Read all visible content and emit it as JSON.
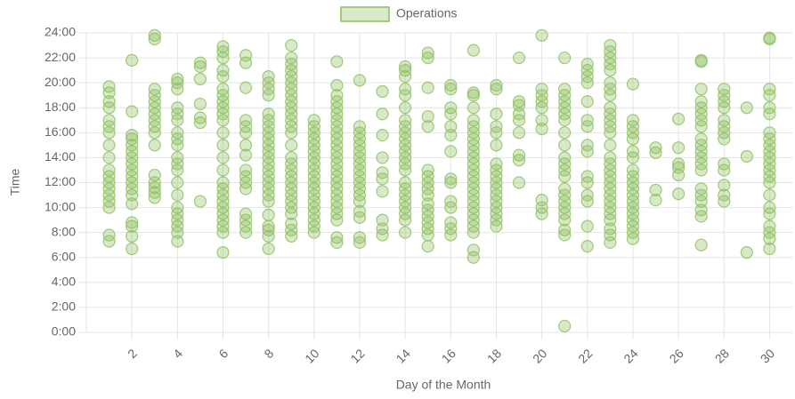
{
  "chart_data": {
    "type": "scatter",
    "xlabel": "Day of the Month",
    "ylabel": "Time",
    "xlim": [
      0,
      31
    ],
    "ylim": [
      0,
      24
    ],
    "xticks": [
      2,
      4,
      6,
      8,
      10,
      12,
      14,
      16,
      18,
      20,
      22,
      24,
      26,
      28,
      30
    ],
    "yticks": [
      {
        "value": 0,
        "label": "0:00"
      },
      {
        "value": 2,
        "label": "2:00"
      },
      {
        "value": 4,
        "label": "4:00"
      },
      {
        "value": 6,
        "label": "6:00"
      },
      {
        "value": 8,
        "label": "8:00"
      },
      {
        "value": 10,
        "label": "10:00"
      },
      {
        "value": 12,
        "label": "12:00"
      },
      {
        "value": 14,
        "label": "14:00"
      },
      {
        "value": 16,
        "label": "16:00"
      },
      {
        "value": 18,
        "label": "18:00"
      },
      {
        "value": 20,
        "label": "20:00"
      },
      {
        "value": 22,
        "label": "22:00"
      },
      {
        "value": 24,
        "label": "24:00"
      }
    ],
    "grid": true,
    "legend": "top",
    "series": [
      {
        "name": "Operations",
        "color": "#8cbf5f",
        "x": [
          1,
          1,
          1,
          1,
          1,
          1,
          1,
          1,
          1,
          1,
          1,
          1,
          1,
          1,
          1,
          1,
          1,
          1,
          2,
          2,
          2,
          2,
          2,
          2,
          2,
          2,
          2,
          2,
          2,
          2,
          2,
          2,
          2,
          2,
          2,
          2,
          3,
          3,
          3,
          3,
          3,
          3,
          3,
          3,
          3,
          3,
          3,
          3,
          3,
          3,
          3,
          3,
          4,
          4,
          4,
          4,
          4,
          4,
          4,
          4,
          4,
          4,
          4,
          4,
          4,
          4,
          4,
          4,
          4,
          4,
          4,
          4,
          5,
          5,
          5,
          5,
          5,
          5,
          5,
          6,
          6,
          6,
          6,
          6,
          6,
          6,
          6,
          6,
          6,
          6,
          6,
          6,
          6,
          6,
          6,
          6,
          6,
          6,
          6,
          6,
          6,
          6,
          6,
          6,
          7,
          7,
          7,
          7,
          7,
          7,
          7,
          7,
          7,
          7,
          7,
          7,
          7,
          7,
          7,
          7,
          8,
          8,
          8,
          8,
          8,
          8,
          8,
          8,
          8,
          8,
          8,
          8,
          8,
          8,
          8,
          8,
          8,
          8,
          8,
          8,
          8,
          8,
          8,
          8,
          9,
          9,
          9,
          9,
          9,
          9,
          9,
          9,
          9,
          9,
          9,
          9,
          9,
          9,
          9,
          9,
          9,
          9,
          9,
          9,
          9,
          9,
          9,
          9,
          9,
          9,
          9,
          9,
          10,
          10,
          10,
          10,
          10,
          10,
          10,
          10,
          10,
          10,
          10,
          10,
          10,
          10,
          10,
          10,
          10,
          10,
          10,
          11,
          11,
          11,
          11,
          11,
          11,
          11,
          11,
          11,
          11,
          11,
          11,
          11,
          11,
          11,
          11,
          11,
          11,
          11,
          11,
          11,
          11,
          11,
          11,
          11,
          12,
          12,
          12,
          12,
          12,
          12,
          12,
          12,
          12,
          12,
          12,
          12,
          12,
          12,
          12,
          12,
          12,
          12,
          13,
          13,
          13,
          13,
          13,
          13,
          13,
          13,
          13,
          13,
          14,
          14,
          14,
          14,
          14,
          14,
          14,
          14,
          14,
          14,
          14,
          14,
          14,
          14,
          14,
          14,
          14,
          14,
          14,
          14,
          14,
          14,
          14,
          15,
          15,
          15,
          15,
          15,
          15,
          15,
          15,
          15,
          15,
          15,
          15,
          15,
          15,
          15,
          15,
          15,
          16,
          16,
          16,
          16,
          16,
          16,
          16,
          16,
          16,
          16,
          16,
          16,
          16,
          16,
          17,
          17,
          17,
          17,
          17,
          17,
          17,
          17,
          17,
          17,
          17,
          17,
          17,
          17,
          17,
          17,
          17,
          17,
          17,
          17,
          17,
          17,
          17,
          17,
          17,
          18,
          18,
          18,
          18,
          18,
          18,
          18,
          18,
          18,
          18,
          18,
          18,
          18,
          18,
          18,
          18,
          18,
          19,
          19,
          19,
          19,
          19,
          19,
          19,
          19,
          19,
          20,
          20,
          20,
          20,
          20,
          20,
          20,
          20,
          20,
          20,
          21,
          21,
          21,
          21,
          21,
          21,
          21,
          21,
          21,
          21,
          21,
          21,
          21,
          21,
          21,
          21,
          21,
          21,
          21,
          21,
          21,
          21,
          22,
          22,
          22,
          22,
          22,
          22,
          22,
          22,
          22,
          22,
          22,
          22,
          22,
          22,
          22,
          23,
          23,
          23,
          23,
          23,
          23,
          23,
          23,
          23,
          23,
          23,
          23,
          23,
          23,
          23,
          23,
          23,
          23,
          23,
          23,
          23,
          23,
          23,
          23,
          23,
          23,
          23,
          23,
          24,
          24,
          24,
          24,
          24,
          24,
          24,
          24,
          24,
          24,
          24,
          24,
          24,
          24,
          24,
          24,
          24,
          24,
          24,
          25,
          25,
          25,
          25,
          26,
          26,
          26,
          26,
          26,
          26,
          27,
          27,
          27,
          27,
          27,
          27,
          27,
          27,
          27,
          27,
          27,
          27,
          27,
          27,
          27,
          27,
          27,
          27,
          27,
          27,
          28,
          28,
          28,
          28,
          28,
          28,
          28,
          28,
          28,
          28,
          28,
          28,
          28,
          29,
          29,
          29,
          30,
          30,
          30,
          30,
          30,
          30,
          30,
          30,
          30,
          30,
          30,
          30,
          30,
          30,
          30,
          30,
          30,
          30,
          30,
          30,
          30,
          30
        ],
        "values": [
          7.3,
          7.8,
          10,
          10.5,
          11,
          11.5,
          12,
          12.5,
          13,
          14,
          15,
          16,
          16.5,
          17,
          18,
          18.5,
          19.2,
          19.7,
          6.7,
          7.7,
          8.5,
          8.8,
          10.3,
          11,
          11.5,
          12,
          12.5,
          13,
          13.5,
          14,
          14.5,
          15,
          15.5,
          15.8,
          17.7,
          21.8,
          10.8,
          11.2,
          11.6,
          12,
          12.6,
          15,
          16,
          16.5,
          17,
          17.5,
          18,
          18.5,
          19,
          19.5,
          23.5,
          23.8,
          7.3,
          8,
          8.5,
          9,
          9.5,
          10,
          11,
          12,
          13,
          13.5,
          14,
          15,
          15.5,
          16,
          17,
          17.5,
          18,
          19.5,
          20,
          20.3,
          10.5,
          16.8,
          17.2,
          18.3,
          20.3,
          21.3,
          21.6,
          6.4,
          8,
          8.5,
          9,
          9.5,
          10,
          10.5,
          11,
          11.5,
          12,
          13,
          14,
          15,
          16,
          17,
          17.5,
          18,
          18.5,
          19,
          19.5,
          20.5,
          21,
          22,
          22.5,
          22.9,
          8,
          8.5,
          9,
          9.5,
          11.5,
          12,
          12.5,
          13,
          14.2,
          15,
          16,
          16.5,
          17,
          19.6,
          21.6,
          22.2,
          6.7,
          7.7,
          8.2,
          8.5,
          9.4,
          10.5,
          11,
          11.5,
          12,
          12.5,
          13,
          13.5,
          14,
          14.5,
          15,
          15.5,
          16,
          16.5,
          17,
          17.5,
          19,
          19.5,
          20,
          20.5,
          7.7,
          8.2,
          8.7,
          9.5,
          10,
          10.5,
          11,
          11.5,
          12,
          12.5,
          13,
          13.5,
          14,
          15,
          16,
          16.5,
          17,
          17.5,
          18,
          18.5,
          19,
          19.5,
          20,
          20.5,
          21,
          21.5,
          22,
          23,
          8,
          8.5,
          9,
          9.5,
          10,
          10.5,
          11,
          11.5,
          12,
          12.5,
          13,
          13.5,
          14,
          14.5,
          15,
          15.5,
          16,
          16.5,
          17,
          7.2,
          7.6,
          9,
          9.5,
          10,
          10.5,
          11,
          11.5,
          12,
          12.5,
          13,
          13.5,
          14,
          14.5,
          15,
          15.5,
          16,
          16.5,
          17,
          17.5,
          18,
          18.5,
          19,
          19.8,
          21.7,
          7.2,
          7.6,
          9.2,
          9.7,
          10.5,
          11,
          11.5,
          12,
          12.5,
          13,
          13.5,
          14,
          14.5,
          15,
          15.5,
          16,
          16.5,
          20.2,
          7.8,
          8.3,
          9,
          11.3,
          12.3,
          12.8,
          14,
          15.8,
          17.5,
          19.3,
          8,
          9,
          9.5,
          10,
          10.5,
          11,
          11.5,
          12,
          13,
          13.5,
          14,
          14.5,
          15,
          15.5,
          16,
          16.5,
          17,
          18,
          19,
          19.5,
          20.5,
          21,
          21.3,
          6.9,
          7.8,
          8.3,
          8.8,
          9.3,
          9.8,
          10.3,
          11,
          11.5,
          12,
          12.5,
          13,
          16.5,
          17.3,
          19.6,
          22,
          22.4,
          7.8,
          8.3,
          8.8,
          10,
          10.5,
          12,
          12.3,
          14.5,
          15.8,
          16.5,
          17.5,
          18,
          19.5,
          19.8,
          6,
          6.6,
          8,
          8.5,
          9,
          9.5,
          10,
          10.5,
          11,
          11.5,
          12,
          12.5,
          13,
          13.5,
          14,
          14.5,
          15,
          15.5,
          16,
          16.5,
          17,
          18,
          19,
          19.2,
          22.6,
          8.5,
          9,
          9.5,
          10,
          10.5,
          11,
          11.5,
          12,
          12.5,
          13,
          13.5,
          15,
          16,
          16.5,
          17.5,
          19.5,
          19.8,
          12,
          13.8,
          14.2,
          16,
          17,
          17.5,
          18.2,
          18.5,
          22,
          9.5,
          10,
          10.6,
          16.3,
          17,
          18,
          18.5,
          19,
          19.5,
          23.8,
          0.5,
          7.8,
          8.2,
          9,
          9.5,
          10,
          10.5,
          11,
          11.5,
          12.5,
          13,
          13.5,
          14,
          15,
          16,
          17,
          17.5,
          18,
          18.5,
          19,
          19.5,
          22,
          6.9,
          8.5,
          10.5,
          11,
          12,
          12.5,
          14.5,
          15,
          16.5,
          17,
          18.5,
          20,
          20.5,
          21,
          21.5,
          7.2,
          7.8,
          8.3,
          9,
          9.5,
          10,
          10.5,
          11,
          11.5,
          12,
          12.5,
          13,
          13.5,
          14,
          15,
          16,
          16.5,
          17,
          17.5,
          18,
          19,
          19.5,
          20,
          21,
          21.5,
          22,
          22.5,
          23,
          7.5,
          8,
          8.5,
          9,
          9.5,
          10,
          10.5,
          11,
          11.5,
          12,
          12.5,
          13,
          14,
          14.5,
          15.5,
          16,
          16.5,
          17,
          19.9,
          10.6,
          11.4,
          14.4,
          14.8,
          11.1,
          12.6,
          13.2,
          13.5,
          14.8,
          17.1,
          7,
          9.3,
          9.8,
          10.5,
          11,
          11.5,
          13,
          13.5,
          14,
          14.5,
          15,
          15.5,
          16.5,
          17,
          17.5,
          18,
          18.5,
          19.5,
          21.7,
          21.8,
          10.5,
          11,
          11.8,
          13,
          13.5,
          15.5,
          16,
          16.5,
          17,
          18,
          18.5,
          19,
          19.5,
          6.4,
          14.1,
          18,
          6.7,
          7.5,
          8,
          8.5,
          9.5,
          10,
          11,
          12,
          12.5,
          13,
          13.5,
          14,
          14.5,
          15,
          15.5,
          16,
          17.5,
          18,
          19,
          19.5,
          23.5,
          23.6
        ]
      }
    ]
  }
}
